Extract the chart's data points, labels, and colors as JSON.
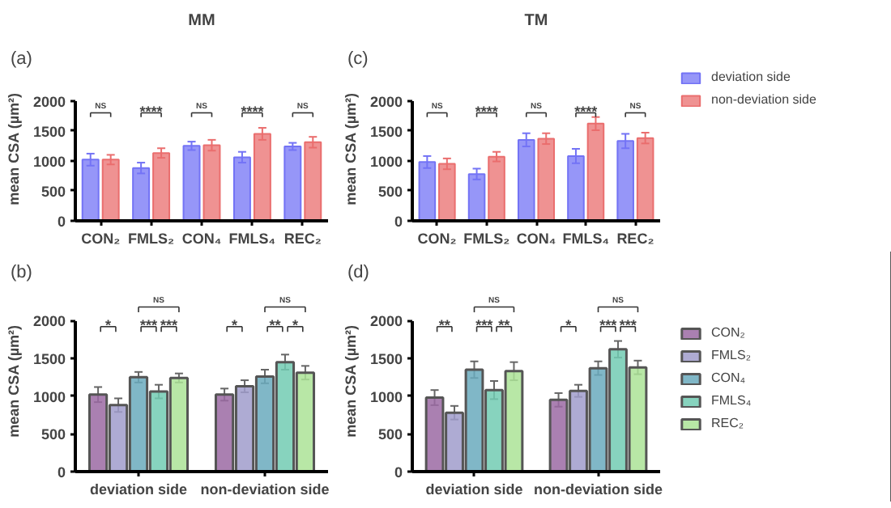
{
  "chart_data": [
    {
      "type": "bar",
      "title": "MM",
      "ylabel": "mean CSA (µm²)",
      "categories": [
        "CON₂",
        "FMLS₂",
        "CON₄",
        "FMLS₄",
        "REC₂"
      ],
      "ylim": [
        0,
        2000
      ],
      "yticks": [
        0,
        500,
        1000,
        1500,
        2000
      ],
      "grid": false,
      "series": [
        {
          "color": "#7373f5",
          "values": [
            1020,
            880,
            1250,
            1060,
            1240
          ],
          "errors": [
            100,
            90,
            70,
            90,
            60
          ]
        },
        {
          "color": "#ea6e6e",
          "values": [
            1020,
            1130,
            1260,
            1450,
            1310
          ],
          "errors": [
            80,
            80,
            90,
            100,
            90
          ]
        }
      ],
      "annotations": [
        "(a)",
        "NS",
        "****",
        "NS",
        "****",
        "NS"
      ]
    },
    {
      "type": "bar",
      "title": "TM",
      "ylabel": "mean CSA (µm²)",
      "categories": [
        "CON₂",
        "FMLS₂",
        "CON₄",
        "FMLS₄",
        "REC₂"
      ],
      "ylim": [
        0,
        2000
      ],
      "yticks": [
        0,
        500,
        1000,
        1500,
        2000
      ],
      "grid": false,
      "legend": "right",
      "series": [
        {
          "name": "deviation side",
          "color": "#7373f5",
          "values": [
            980,
            780,
            1350,
            1080,
            1330
          ],
          "errors": [
            100,
            90,
            110,
            120,
            120
          ]
        },
        {
          "name": "non-deviation side",
          "color": "#ea6e6e",
          "values": [
            950,
            1070,
            1370,
            1620,
            1380
          ],
          "errors": [
            90,
            80,
            90,
            110,
            90
          ]
        }
      ],
      "annotations": [
        "(c)",
        "NS",
        "****",
        "NS",
        "****",
        "NS"
      ]
    },
    {
      "type": "bar",
      "ylabel": "mean CSA (µm²)",
      "categories": [
        "deviation side",
        "non-deviation side"
      ],
      "ylim": [
        0,
        2000
      ],
      "yticks": [
        0,
        500,
        1000,
        1500,
        2000
      ],
      "grid": false,
      "series": [
        {
          "color": "#9b6aa3",
          "values": [
            1020,
            1020
          ],
          "errors": [
            100,
            80
          ]
        },
        {
          "color": "#a09ccb",
          "values": [
            880,
            1130
          ],
          "errors": [
            90,
            80
          ]
        },
        {
          "color": "#6aaabd",
          "values": [
            1250,
            1260
          ],
          "errors": [
            70,
            90
          ]
        },
        {
          "color": "#72cbb3",
          "values": [
            1060,
            1450
          ],
          "errors": [
            90,
            100
          ]
        },
        {
          "color": "#ace396",
          "values": [
            1240,
            1310
          ],
          "errors": [
            60,
            90
          ]
        }
      ],
      "annotations": [
        "(b)",
        "*",
        "***",
        "***",
        "NS",
        "*",
        "**",
        "*",
        "NS"
      ]
    },
    {
      "type": "bar",
      "ylabel": "mean CSA (µm²)",
      "categories": [
        "deviation side",
        "non-deviation side"
      ],
      "ylim": [
        0,
        2000
      ],
      "yticks": [
        0,
        500,
        1000,
        1500,
        2000
      ],
      "grid": false,
      "legend": "right",
      "series": [
        {
          "name": "CON₂",
          "color": "#9b6aa3",
          "values": [
            980,
            950
          ],
          "errors": [
            100,
            90
          ]
        },
        {
          "name": "FMLS₂",
          "color": "#a09ccb",
          "values": [
            780,
            1070
          ],
          "errors": [
            90,
            80
          ]
        },
        {
          "name": "CON₄",
          "color": "#6aaabd",
          "values": [
            1350,
            1370
          ],
          "errors": [
            110,
            90
          ]
        },
        {
          "name": "FMLS₄",
          "color": "#72cbb3",
          "values": [
            1080,
            1620
          ],
          "errors": [
            120,
            110
          ]
        },
        {
          "name": "REC₂",
          "color": "#ace396",
          "values": [
            1330,
            1380
          ],
          "errors": [
            120,
            90
          ]
        }
      ],
      "annotations": [
        "(d)",
        "**",
        "***",
        "**",
        "NS",
        "*",
        "***",
        "***",
        "NS"
      ]
    }
  ]
}
